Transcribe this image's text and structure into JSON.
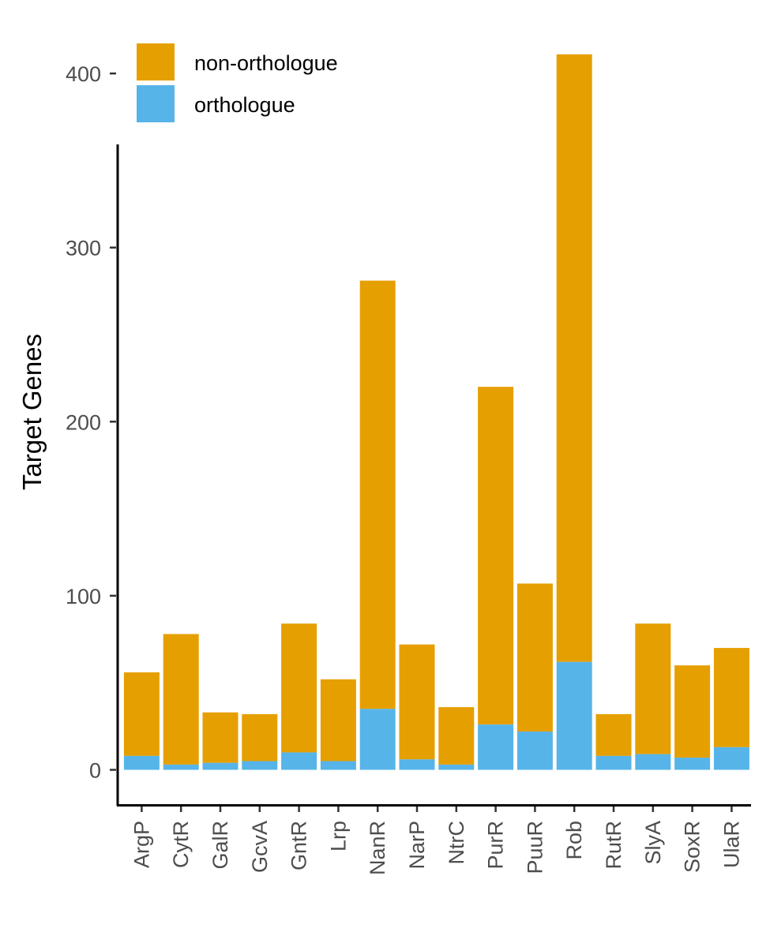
{
  "chart_data": {
    "type": "bar",
    "stacked": true,
    "title": "",
    "xlabel": "",
    "ylabel": "Target Genes",
    "ylim": [
      -20,
      420
    ],
    "yticks": [
      0,
      100,
      200,
      300,
      400
    ],
    "grid": false,
    "legend_position": "top-left",
    "categories": [
      "ArgP",
      "CytR",
      "GalR",
      "GcvA",
      "GntR",
      "Lrp",
      "NanR",
      "NarP",
      "NtrC",
      "PurR",
      "PuuR",
      "Rob",
      "RutR",
      "SlyA",
      "SoxR",
      "UlaR"
    ],
    "series": [
      {
        "name": "orthologue",
        "color": "#56B4E9",
        "values": [
          8,
          3,
          4,
          5,
          10,
          5,
          35,
          6,
          3,
          26,
          22,
          62,
          8,
          9,
          7,
          13
        ]
      },
      {
        "name": "non-orthologue",
        "color": "#E69F00",
        "values": [
          48,
          75,
          29,
          27,
          74,
          47,
          246,
          66,
          33,
          194,
          85,
          349,
          24,
          75,
          53,
          57
        ]
      }
    ],
    "legend_order": [
      "non-orthologue",
      "orthologue"
    ]
  }
}
